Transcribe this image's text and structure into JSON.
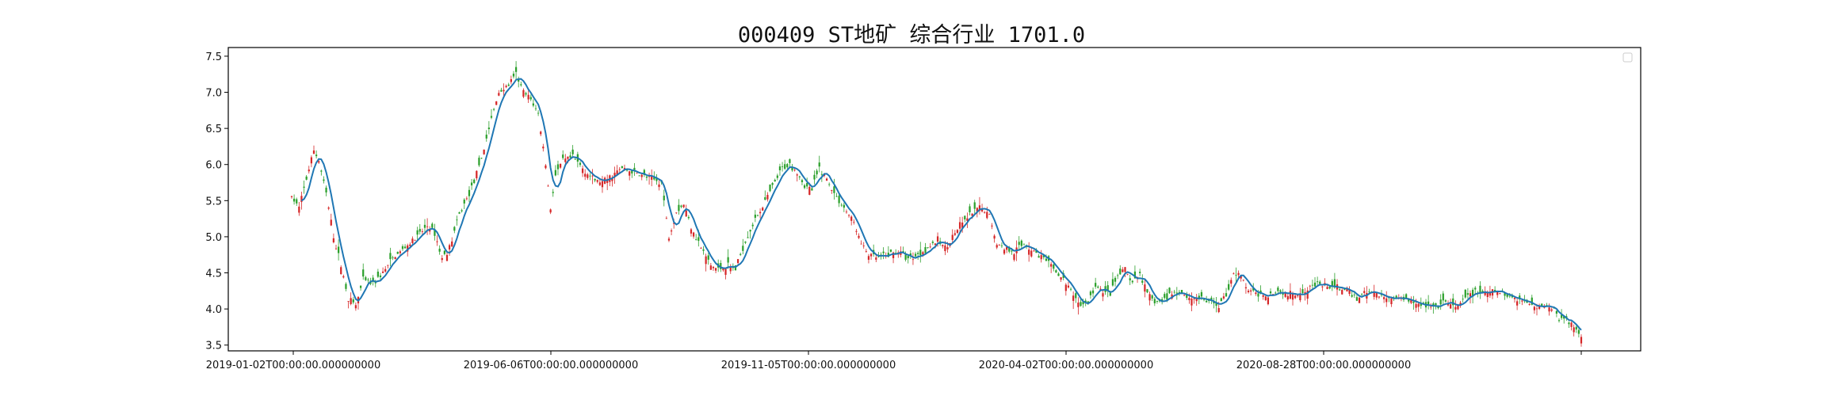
{
  "chart_data": {
    "type": "candlestick",
    "title": "000409 ST地矿 综合行业 1701.0",
    "xlabel": "",
    "ylabel": "",
    "x_tick_labels": [
      "2019-01-02T00:00:00.000000000",
      "2019-06-06T00:00:00.000000000",
      "2019-11-05T00:00:00.000000000",
      "2020-04-02T00:00:00.000000000",
      "2020-08-28T00:00:00.000000000",
      ""
    ],
    "y_ticks": [
      3.5,
      4.0,
      4.5,
      5.0,
      5.5,
      6.0,
      6.5,
      7.0,
      7.5
    ],
    "ylim": [
      3.42,
      7.62
    ],
    "legend": {
      "placement": "top-right",
      "entries": []
    },
    "colors": {
      "up": "#d62728",
      "down": "#2ca02c",
      "ma": "#1f77b4",
      "axis": "#000000"
    },
    "grid": false,
    "close_anchors": [
      [
        0,
        5.55
      ],
      [
        3,
        5.4
      ],
      [
        6,
        5.8
      ],
      [
        9,
        6.2
      ],
      [
        11,
        6.05
      ],
      [
        14,
        5.6
      ],
      [
        17,
        5.0
      ],
      [
        20,
        4.6
      ],
      [
        23,
        4.15
      ],
      [
        26,
        4.05
      ],
      [
        29,
        4.4
      ],
      [
        33,
        4.35
      ],
      [
        37,
        4.5
      ],
      [
        41,
        4.7
      ],
      [
        46,
        4.85
      ],
      [
        51,
        5.0
      ],
      [
        55,
        5.15
      ],
      [
        58,
        5.05
      ],
      [
        61,
        4.7
      ],
      [
        64,
        4.85
      ],
      [
        68,
        5.3
      ],
      [
        72,
        5.6
      ],
      [
        76,
        5.95
      ],
      [
        80,
        6.5
      ],
      [
        84,
        7.0
      ],
      [
        88,
        7.1
      ],
      [
        91,
        7.25
      ],
      [
        94,
        7.0
      ],
      [
        97,
        6.9
      ],
      [
        100,
        6.7
      ],
      [
        103,
        6.0
      ],
      [
        105,
        5.4
      ],
      [
        107,
        5.85
      ],
      [
        110,
        6.05
      ],
      [
        114,
        6.1
      ],
      [
        118,
        5.95
      ],
      [
        122,
        5.8
      ],
      [
        126,
        5.75
      ],
      [
        130,
        5.85
      ],
      [
        134,
        5.95
      ],
      [
        138,
        5.9
      ],
      [
        142,
        5.85
      ],
      [
        146,
        5.8
      ],
      [
        150,
        5.75
      ],
      [
        153,
        5.0
      ],
      [
        156,
        5.35
      ],
      [
        159,
        5.45
      ],
      [
        162,
        5.15
      ],
      [
        166,
        4.85
      ],
      [
        170,
        4.6
      ],
      [
        173,
        4.55
      ],
      [
        177,
        4.6
      ],
      [
        180,
        4.55
      ],
      [
        183,
        4.85
      ],
      [
        186,
        5.1
      ],
      [
        189,
        5.3
      ],
      [
        193,
        5.55
      ],
      [
        196,
        5.75
      ],
      [
        199,
        5.95
      ],
      [
        202,
        6.0
      ],
      [
        205,
        5.9
      ],
      [
        208,
        5.7
      ],
      [
        211,
        5.65
      ],
      [
        214,
        5.95
      ],
      [
        217,
        5.8
      ],
      [
        220,
        5.6
      ],
      [
        224,
        5.4
      ],
      [
        228,
        5.2
      ],
      [
        231,
        4.9
      ],
      [
        234,
        4.75
      ],
      [
        238,
        4.7
      ],
      [
        242,
        4.75
      ],
      [
        246,
        4.8
      ],
      [
        250,
        4.7
      ],
      [
        254,
        4.75
      ],
      [
        258,
        4.85
      ],
      [
        262,
        4.95
      ],
      [
        265,
        4.85
      ],
      [
        268,
        5.0
      ],
      [
        271,
        5.15
      ],
      [
        275,
        5.3
      ],
      [
        279,
        5.4
      ],
      [
        283,
        5.3
      ],
      [
        286,
        4.9
      ],
      [
        289,
        4.85
      ],
      [
        293,
        4.8
      ],
      [
        297,
        4.9
      ],
      [
        301,
        4.8
      ],
      [
        305,
        4.7
      ],
      [
        309,
        4.55
      ],
      [
        313,
        4.4
      ],
      [
        317,
        4.2
      ],
      [
        320,
        4.05
      ],
      [
        323,
        4.1
      ],
      [
        326,
        4.3
      ],
      [
        329,
        4.25
      ],
      [
        332,
        4.2
      ],
      [
        335,
        4.45
      ],
      [
        338,
        4.55
      ],
      [
        341,
        4.35
      ],
      [
        344,
        4.5
      ],
      [
        347,
        4.2
      ],
      [
        350,
        4.1
      ],
      [
        353,
        4.1
      ],
      [
        356,
        4.2
      ],
      [
        360,
        4.25
      ],
      [
        364,
        4.15
      ],
      [
        368,
        4.15
      ],
      [
        372,
        4.1
      ],
      [
        376,
        4.05
      ],
      [
        379,
        4.2
      ],
      [
        382,
        4.5
      ],
      [
        385,
        4.45
      ],
      [
        388,
        4.25
      ],
      [
        392,
        4.2
      ],
      [
        396,
        4.2
      ],
      [
        400,
        4.25
      ],
      [
        404,
        4.2
      ],
      [
        408,
        4.2
      ],
      [
        412,
        4.3
      ],
      [
        416,
        4.35
      ],
      [
        420,
        4.3
      ],
      [
        424,
        4.3
      ],
      [
        428,
        4.25
      ],
      [
        432,
        4.15
      ],
      [
        436,
        4.25
      ],
      [
        440,
        4.2
      ],
      [
        444,
        4.15
      ],
      [
        448,
        4.15
      ],
      [
        452,
        4.15
      ],
      [
        456,
        4.1
      ],
      [
        460,
        4.05
      ],
      [
        464,
        4.0
      ],
      [
        468,
        4.1
      ],
      [
        472,
        4.0
      ],
      [
        476,
        4.15
      ],
      [
        480,
        4.25
      ],
      [
        484,
        4.2
      ],
      [
        488,
        4.25
      ],
      [
        492,
        4.2
      ],
      [
        496,
        4.15
      ],
      [
        500,
        4.1
      ],
      [
        504,
        4.05
      ],
      [
        508,
        4.05
      ],
      [
        512,
        4.0
      ],
      [
        514,
        3.85
      ],
      [
        517,
        3.85
      ],
      [
        520,
        3.75
      ],
      [
        523,
        3.62
      ]
    ],
    "ma_period": 5
  }
}
